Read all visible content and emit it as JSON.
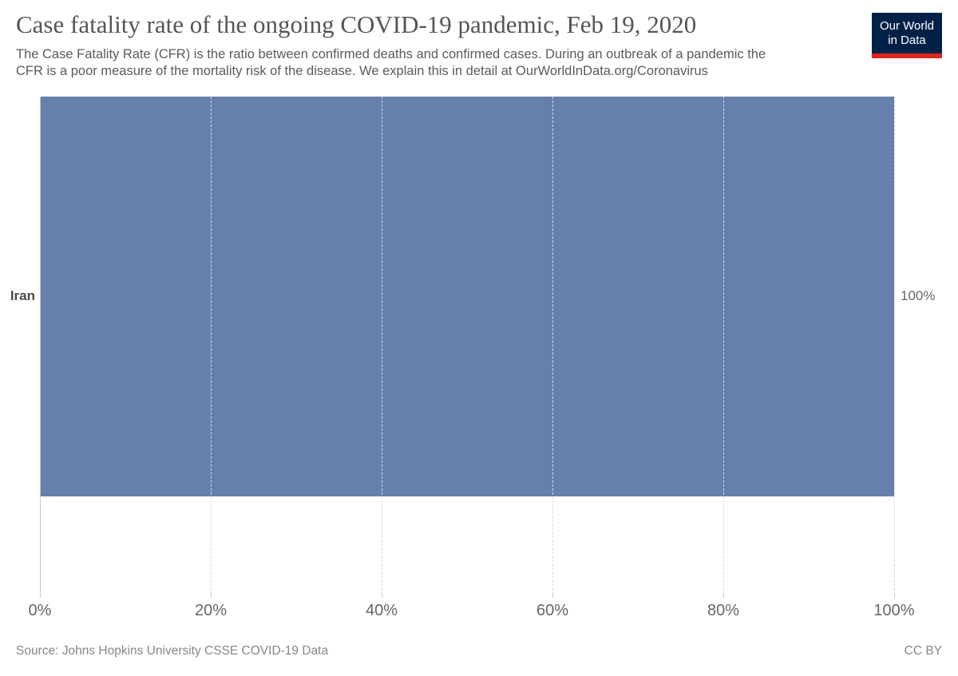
{
  "logo": {
    "line1": "Our World",
    "line2": "in Data",
    "bg_color": "#002147",
    "stripe_color": "#e0261f"
  },
  "chart_data": {
    "type": "bar",
    "orientation": "horizontal",
    "title": "Case fatality rate of the ongoing COVID-19 pandemic, Feb 19, 2020",
    "subtitle_lines": [
      "The Case Fatality Rate (CFR) is the ratio between confirmed deaths and confirmed cases. During an outbreak of a pandemic the",
      "CFR is a poor measure of the mortality risk of the disease. We explain this in detail at OurWorldInData.org/Coronavirus"
    ],
    "categories": [
      "Iran"
    ],
    "values": [
      100
    ],
    "value_labels": [
      "100%"
    ],
    "x_ticks": [
      "0%",
      "20%",
      "40%",
      "60%",
      "80%",
      "100%"
    ],
    "xlim": [
      0,
      100
    ],
    "xlabel": "",
    "ylabel": "",
    "grid": "vertical-dashed",
    "legend": "none",
    "bar_color": "#6680ac",
    "axis_tick_color": "#666666"
  },
  "footer": {
    "source": "Source: Johns Hopkins University CSSE COVID-19 Data",
    "license": "CC BY"
  }
}
